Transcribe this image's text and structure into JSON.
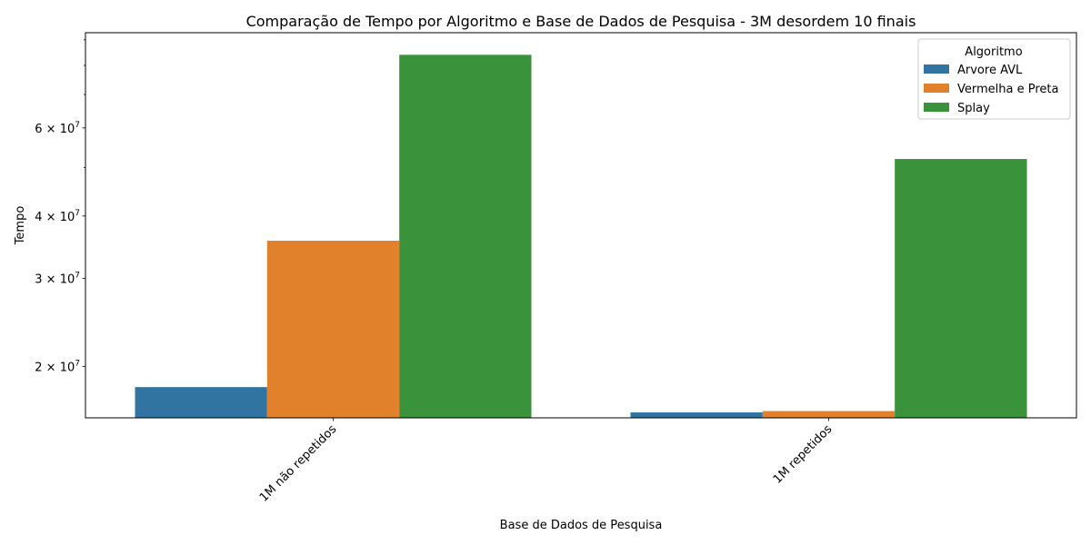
{
  "chart_data": {
    "type": "bar",
    "title": "Comparação de Tempo por Algoritmo e Base de Dados de Pesquisa - 3M desordem 10 finais",
    "xlabel": "Base de Dados de Pesquisa",
    "ylabel": "Tempo",
    "yscale": "log",
    "ylim": [
      15800000,
      93000000
    ],
    "grid": false,
    "legend_title": "Algoritmo",
    "legend_position": "top-right",
    "categories": [
      "1M não repetidos",
      "1M repetidos"
    ],
    "series": [
      {
        "name": "Arvore AVL",
        "color": "#3274a1",
        "values": [
          18200000,
          16200000
        ]
      },
      {
        "name": "Vermelha e Preta",
        "color": "#e1812c",
        "values": [
          35700000,
          16300000
        ]
      },
      {
        "name": "Splay",
        "color": "#3a923a",
        "values": [
          84000000,
          52000000
        ]
      }
    ],
    "major_ticks": [
      {
        "value": 20000000,
        "mantissa": "2",
        "exponent": "7"
      },
      {
        "value": 30000000,
        "mantissa": "3",
        "exponent": "7"
      },
      {
        "value": 40000000,
        "mantissa": "4",
        "exponent": "7"
      },
      {
        "value": 60000000,
        "mantissa": "6",
        "exponent": "7"
      }
    ],
    "times_sign": "×",
    "base": "10",
    "minor_ticks": [
      50000000,
      70000000,
      80000000,
      90000000
    ]
  }
}
